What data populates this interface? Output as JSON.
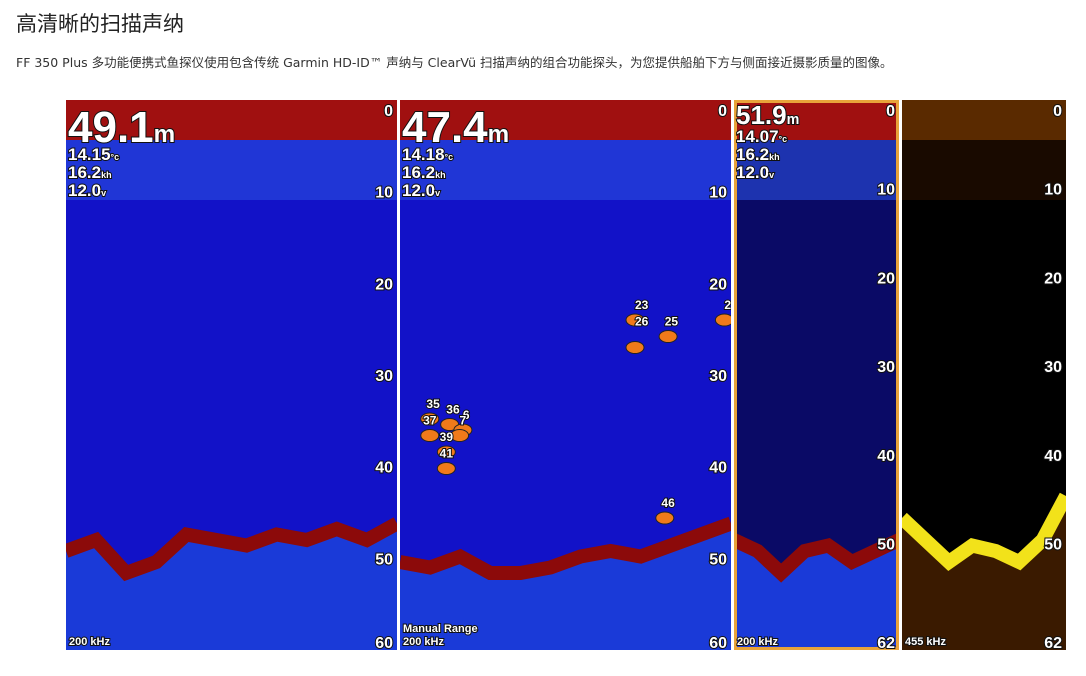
{
  "header": {
    "title": "高清晰的扫描声纳",
    "description": "FF 350 Plus 多功能便携式鱼探仪使用包含传统 Garmin HD-ID™ 声纳与 ClearVü 扫描声纳的组合功能探头，为您提供船舶下方与侧面接近摄影质量的图像。"
  },
  "panels": [
    {
      "depth": "49.1",
      "depth_unit": "m",
      "temperature": "14.15",
      "temperature_unit": "°c",
      "speed": "16.2",
      "speed_unit": "kh",
      "voltage": "12.0",
      "voltage_unit": "v",
      "scale": [
        0,
        10,
        20,
        30,
        40,
        50,
        60
      ],
      "frequency": "200 kHz"
    },
    {
      "depth": "47.4",
      "depth_unit": "m",
      "temperature": "14.18",
      "temperature_unit": "°c",
      "speed": "16.2",
      "speed_unit": "kh",
      "voltage": "12.0",
      "voltage_unit": "v",
      "scale": [
        0,
        10,
        20,
        30,
        40,
        50,
        60
      ],
      "frequency": "200 kHz",
      "range_mode": "Manual Range",
      "fish": [
        "23",
        "25",
        "26",
        "2",
        "35",
        "36",
        "6",
        "7",
        "37",
        "39",
        "41",
        "46"
      ]
    },
    {
      "depth": "51.9",
      "depth_unit": "m",
      "temperature": "14.07",
      "temperature_unit": "°c",
      "speed": "16.2",
      "speed_unit": "kh",
      "voltage": "12.0",
      "voltage_unit": "v",
      "scale": [
        0,
        10,
        20,
        30,
        40,
        50,
        62
      ],
      "frequency": "200 kHz"
    },
    {
      "scale": [
        0,
        10,
        20,
        30,
        40,
        50,
        62
      ],
      "frequency": "455 kHz"
    }
  ]
}
